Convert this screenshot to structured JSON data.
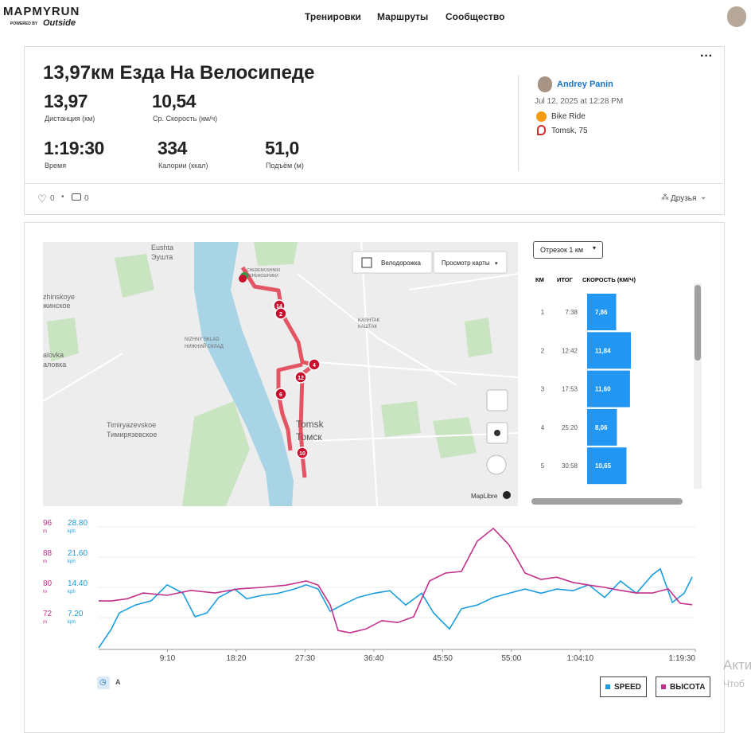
{
  "header": {
    "logo": "MAPMYRUN",
    "powered_by": "POWERED BY",
    "brand": "Outside",
    "nav": [
      "Тренировки",
      "Маршруты",
      "Сообщество"
    ]
  },
  "workout": {
    "title": "13,97км Езда На Велосипеде",
    "stats": [
      {
        "value": "13,97",
        "label": "Дистанция (км)"
      },
      {
        "value": "10,54",
        "label": "Ср. Скорость (км/ч)"
      },
      {
        "value": "1:19:30",
        "label": "Время"
      },
      {
        "value": "334",
        "label": "Калории (ккал)"
      },
      {
        "value": "51,0",
        "label": "Подъём (м)"
      }
    ],
    "user": "Andrey Panin",
    "date": "Jul 12, 2025 at 12:28 PM",
    "activity": "Bike Ride",
    "location": "Tomsk, 75",
    "likes": "0",
    "comments": "0",
    "privacy": "Друзья"
  },
  "map": {
    "bike_lane": "Велодорожка",
    "view": "Просмотр карты",
    "attribution": "MapLibre",
    "labels": [
      "Eushta",
      "Эушта",
      "zhinskoye",
      "жинское",
      "alovka",
      "аловка",
      "NIZHNY SKLAD",
      "НИЖНИЙ СКЛАД",
      "KASHTAK",
      "КАШТАК",
      "Timiryazevskoe",
      "Тимирязевское",
      "Tomsk",
      "Томск",
      "CHEREMOSHNIKI",
      "ЧЕРЕМОШНИКИ"
    ],
    "markers": [
      "14",
      "2",
      "4",
      "12",
      "6",
      "10"
    ]
  },
  "splits": {
    "dropdown": "Отрезок 1 км",
    "headers": [
      "КМ",
      "ИТОГ",
      "СКОРОСТЬ (КМ/Ч)"
    ],
    "km": [
      "1",
      "2",
      "3",
      "4",
      "5"
    ],
    "time": [
      "7:38",
      "12:42",
      "17:53",
      "25:20",
      "30:58"
    ],
    "speed": [
      7.86,
      11.84,
      11.6,
      8.06,
      10.65
    ],
    "speed_labels": [
      "7,86",
      "11,84",
      "11,60",
      "8,06",
      "10,65"
    ]
  },
  "chart_data": {
    "type": "line",
    "y_unit": "m",
    "y2_unit": "kph",
    "xlim": [
      0,
      4770
    ],
    "xticks": [
      {
        "value": 550,
        "label": "9:10"
      },
      {
        "value": 1100,
        "label": "18:20"
      },
      {
        "value": 1650,
        "label": "27:30"
      },
      {
        "value": 2200,
        "label": "36:40"
      },
      {
        "value": 2750,
        "label": "45:50"
      },
      {
        "value": 3300,
        "label": "55:00"
      },
      {
        "value": 3850,
        "label": "1:04:10"
      },
      {
        "value": 4770,
        "label": "1:19:30"
      }
    ],
    "ylim": [
      64,
      96
    ],
    "yticks": [
      72,
      80,
      88,
      96
    ],
    "y2lim": [
      0,
      28.8
    ],
    "y2ticks": [
      {
        "value": 7.2,
        "label": "7.20"
      },
      {
        "value": 14.4,
        "label": "14.40"
      },
      {
        "value": 21.6,
        "label": "21.60"
      },
      {
        "value": 28.8,
        "label": "28.80"
      }
    ],
    "grid": true,
    "series": [
      {
        "name": "SPEED",
        "color": "#1a9de0",
        "axis": "y2",
        "x": [
          0,
          102,
          165,
          293,
          420,
          547,
          674,
          770,
          865,
          960,
          1088,
          1183,
          1310,
          1437,
          1565,
          1660,
          1755,
          1851,
          1946,
          2073,
          2201,
          2328,
          2455,
          2582,
          2678,
          2805,
          2900,
          3027,
          3155,
          3282,
          3409,
          3536,
          3663,
          3791,
          3918,
          4045,
          4172,
          4299,
          4427,
          4490,
          4586,
          4681,
          4745
        ],
        "values": [
          0,
          4.5,
          8.3,
          10.2,
          11.2,
          15,
          13,
          7.4,
          8.3,
          12,
          14,
          11.7,
          12.5,
          13,
          14,
          15,
          14,
          8.7,
          10.2,
          12,
          13,
          13.6,
          10.2,
          13,
          8.3,
          4.5,
          9.3,
          10.2,
          12,
          13,
          14,
          13,
          14,
          13.6,
          15,
          12,
          15.9,
          13,
          17.4,
          18.8,
          10.8,
          13,
          16.9
        ]
      },
      {
        "name": "ВЫСОТА",
        "color": "#c2308c",
        "axis": "y",
        "x": [
          0,
          102,
          229,
          356,
          547,
          738,
          929,
          1119,
          1310,
          1501,
          1660,
          1755,
          1851,
          1914,
          2010,
          2137,
          2264,
          2391,
          2518,
          2646,
          2773,
          2900,
          3027,
          3155,
          3282,
          3409,
          3536,
          3663,
          3791,
          3918,
          4045,
          4172,
          4299,
          4427,
          4554,
          4649,
          4745
        ],
        "values": [
          76.4,
          76.4,
          77,
          78.5,
          77.9,
          79.2,
          78.5,
          79.6,
          80,
          80.6,
          81.7,
          80.6,
          75.4,
          68.6,
          68,
          69,
          71.2,
          70.7,
          72.2,
          81.7,
          83.8,
          84.2,
          92.2,
          95.6,
          91.2,
          83.8,
          82.1,
          82.7,
          81.3,
          80.6,
          80,
          79.2,
          78.5,
          78.5,
          79.6,
          75.8,
          75.4
        ]
      }
    ]
  },
  "watermark": [
    "Акти",
    "Чтоб"
  ]
}
